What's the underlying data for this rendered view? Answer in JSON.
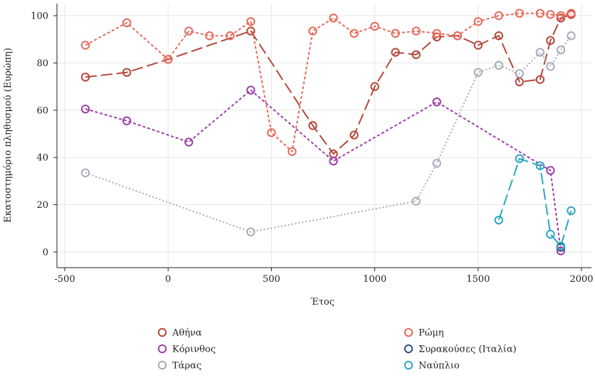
{
  "chart_data": {
    "type": "line",
    "title": "",
    "xlabel": "Έτος",
    "ylabel": "Εκατοστημόριο πληθυσμού (Ευρώπη)",
    "xlim": [
      -550,
      2050
    ],
    "ylim": [
      -3,
      104
    ],
    "xticks": [
      -500,
      0,
      500,
      1000,
      1500,
      2000
    ],
    "xtick_labels": [
      "-500",
      "0",
      "500",
      "1000",
      "1500",
      "2000"
    ],
    "yticks": [
      0,
      20,
      40,
      60,
      80,
      100
    ],
    "ytick_labels": [
      "0",
      "20",
      "40",
      "60",
      "80",
      "100"
    ],
    "grid": true,
    "legend_position": "bottom",
    "series": [
      {
        "name": "Αθήνα",
        "color": "#b5483a",
        "dash": "long-dash",
        "x": [
          -400,
          -200,
          0,
          400,
          700,
          800,
          900,
          1000,
          1100,
          1200,
          1300,
          1400,
          1500,
          1600,
          1700,
          1800,
          1850,
          1900,
          1950
        ],
        "y": [
          74,
          76,
          81.5,
          93.5,
          53.5,
          41.5,
          49.5,
          70,
          84.5,
          83.5,
          91,
          91.5,
          87.5,
          91.5,
          72,
          73,
          89.5,
          99,
          100.5
        ]
      },
      {
        "name": "Ρώμη",
        "color": "#e9695a",
        "dash": "short-dash",
        "x": [
          -400,
          -200,
          0,
          100,
          200,
          300,
          400,
          500,
          600,
          700,
          800,
          900,
          1000,
          1100,
          1200,
          1300,
          1400,
          1500,
          1600,
          1700,
          1800,
          1850,
          1900,
          1950
        ],
        "y": [
          87.5,
          97,
          81.5,
          93.5,
          91.5,
          91.5,
          97.5,
          50.5,
          42.5,
          93.5,
          99,
          92.5,
          95.5,
          92.5,
          93.5,
          92.5,
          91.5,
          97.5,
          100,
          101,
          101,
          100.5,
          100,
          101
        ]
      },
      {
        "name": "Κόρινθος",
        "color": "#9c3fa7",
        "dash": "short-dash",
        "x": [
          -400,
          -200,
          100,
          400,
          800,
          1300,
          1850,
          1900
        ],
        "y": [
          60.5,
          55.5,
          46.5,
          68.5,
          38.5,
          63.5,
          34.5,
          0.5
        ]
      },
      {
        "name": "Συρακούσες (Ιταλία)",
        "color": "#2e4f8a",
        "dash": "short-dash",
        "x": [
          1900
        ],
        "y": [
          2
        ]
      },
      {
        "name": "Τάρας",
        "color": "#a8acb8",
        "dash": "dotted",
        "x": [
          -400,
          400,
          1200,
          1300,
          1500,
          1600,
          1700,
          1800,
          1850,
          1900,
          1950
        ],
        "y": [
          33.5,
          8.5,
          21.5,
          37.5,
          76,
          79,
          75.5,
          84.5,
          78.5,
          85.5,
          91.5
        ]
      },
      {
        "name": "Ναύπλιο",
        "color": "#2ba6c4",
        "dash": "long-dash",
        "x": [
          1600,
          1700,
          1800,
          1850,
          1900,
          1950
        ],
        "y": [
          13.5,
          39.5,
          36.5,
          7.5,
          2.5,
          17.5
        ]
      }
    ]
  }
}
